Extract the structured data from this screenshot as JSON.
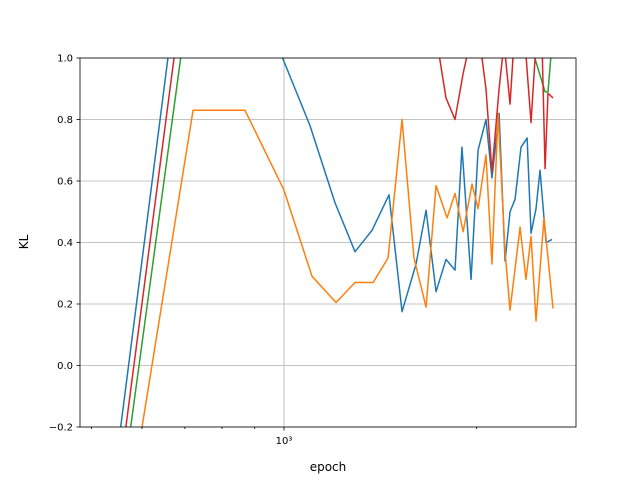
{
  "chart_data": {
    "type": "line",
    "xlabel": "epoch",
    "ylabel": "KL",
    "xscale": "log",
    "grid": true,
    "xlim": [
      480,
      2859
    ],
    "ylim": [
      -0.2,
      1.0
    ],
    "xticks": [
      {
        "value": 1000,
        "label": "10³"
      }
    ],
    "xminorticks": [
      500,
      600,
      700,
      800,
      900,
      2000
    ],
    "yticks": [
      {
        "value": -0.2,
        "label": "−0.2"
      },
      {
        "value": 0,
        "label": "0.0"
      },
      0.2,
      0.4,
      0.6,
      0.8,
      {
        "value": 1,
        "label": "1.0"
      }
    ],
    "series": [
      {
        "color": "#1f77b4",
        "x": [
          544,
          668,
          869,
          986,
          1098,
          1201,
          1291,
          1373,
          1459,
          1529,
          1608,
          1667,
          1728,
          1791,
          1850,
          1897,
          1960,
          2010,
          2068,
          2113,
          2168,
          2215,
          2255,
          2296,
          2346,
          2398,
          2432,
          2476,
          2512,
          2567,
          2623
        ],
        "values": [
          -0.35,
          1.1,
          1.3,
          1.02,
          0.78,
          0.53,
          0.37,
          0.44,
          0.555,
          0.175,
          0.33,
          0.505,
          0.24,
          0.345,
          0.31,
          0.71,
          0.28,
          0.7,
          0.8,
          0.61,
          0.82,
          0.34,
          0.5,
          0.54,
          0.71,
          0.74,
          0.43,
          0.51,
          0.635,
          0.4,
          0.41
        ]
      },
      {
        "color": "#ff7f0e",
        "x": [
          579,
          721,
          869,
          1000,
          1106,
          1206,
          1291,
          1378,
          1454,
          1529,
          1596,
          1667,
          1728,
          1798,
          1850,
          1905,
          1967,
          2010,
          2068,
          2113,
          2160,
          2215,
          2255,
          2338,
          2388,
          2432,
          2476,
          2548,
          2585,
          2632
        ],
        "values": [
          -0.4,
          0.83,
          0.83,
          0.57,
          0.29,
          0.205,
          0.27,
          0.27,
          0.35,
          0.8,
          0.35,
          0.19,
          0.585,
          0.48,
          0.56,
          0.435,
          0.59,
          0.51,
          0.685,
          0.33,
          0.82,
          0.37,
          0.18,
          0.45,
          0.28,
          0.42,
          0.145,
          0.48,
          0.35,
          0.185
        ]
      },
      {
        "color": "#2ca02c",
        "x": [
          559,
          700,
          2424,
          2558,
          2585,
          2623
        ],
        "values": [
          -0.4,
          1.1,
          1.05,
          0.89,
          0.89,
          1.05
        ]
      },
      {
        "color": "#d62728",
        "x": [
          550,
          683,
          1735,
          1791,
          1850,
          1905,
          1952,
          2024,
          2068,
          2113,
          2168,
          2207,
          2255,
          2287,
          2380,
          2432,
          2476,
          2530,
          2558,
          2585,
          2632
        ],
        "values": [
          -0.4,
          1.1,
          1.05,
          0.87,
          0.8,
          0.95,
          1.05,
          1.05,
          0.9,
          0.63,
          0.9,
          1.05,
          0.85,
          1.05,
          1.05,
          0.79,
          1.05,
          1.05,
          0.64,
          0.885,
          0.87
        ]
      }
    ]
  }
}
